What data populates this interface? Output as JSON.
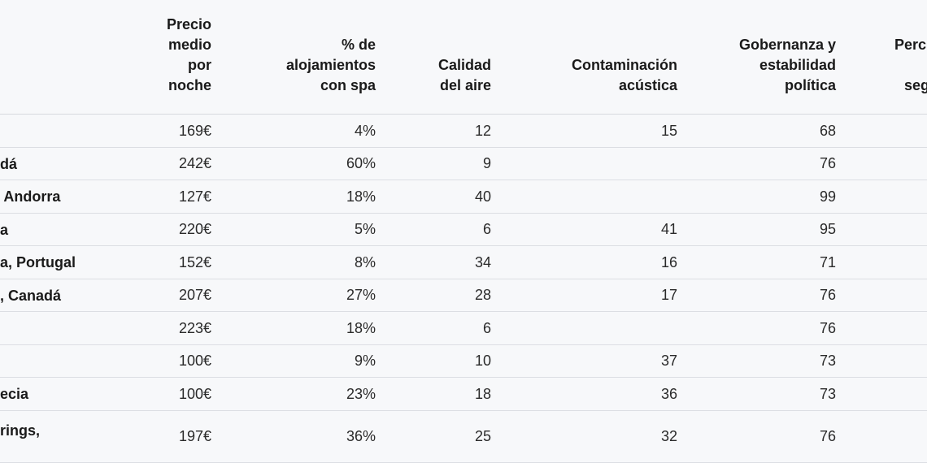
{
  "headers": [
    [
      "Precio",
      "medio",
      "por",
      "noche"
    ],
    [
      "% de",
      "alojamientos",
      "con spa"
    ],
    [
      "Calidad",
      "del aire"
    ],
    [
      "Contaminación",
      "acústica"
    ],
    [
      "Gobernanza y",
      "estabilidad",
      "política"
    ],
    [
      "Perc",
      "",
      "seg"
    ]
  ],
  "rows": [
    {
      "name": "",
      "precio": "169€",
      "spa": "4%",
      "aire": "12",
      "ruido": "15",
      "gobernanza": "68"
    },
    {
      "name": "dá",
      "precio": "242€",
      "spa": "60%",
      "aire": "9",
      "ruido": "",
      "gobernanza": "76"
    },
    {
      "name": " Andorra",
      "precio": "127€",
      "spa": "18%",
      "aire": "40",
      "ruido": "",
      "gobernanza": "99"
    },
    {
      "name": "a",
      "precio": "220€",
      "spa": "5%",
      "aire": "6",
      "ruido": "41",
      "gobernanza": "95"
    },
    {
      "name": "a, Portugal",
      "precio": "152€",
      "spa": "8%",
      "aire": "34",
      "ruido": "16",
      "gobernanza": "71"
    },
    {
      "name": ", Canadá",
      "precio": "207€",
      "spa": "27%",
      "aire": "28",
      "ruido": "17",
      "gobernanza": "76"
    },
    {
      "name": "",
      "precio": "223€",
      "spa": "18%",
      "aire": "6",
      "ruido": "",
      "gobernanza": "76"
    },
    {
      "name": "",
      "precio": "100€",
      "spa": "9%",
      "aire": "10",
      "ruido": "37",
      "gobernanza": "73"
    },
    {
      "name": "ecia",
      "precio": "100€",
      "spa": "23%",
      "aire": "18",
      "ruido": "36",
      "gobernanza": "73"
    },
    {
      "name": "rings,",
      "precio": "197€",
      "spa": "36%",
      "aire": "25",
      "ruido": "32",
      "gobernanza": "76"
    }
  ]
}
